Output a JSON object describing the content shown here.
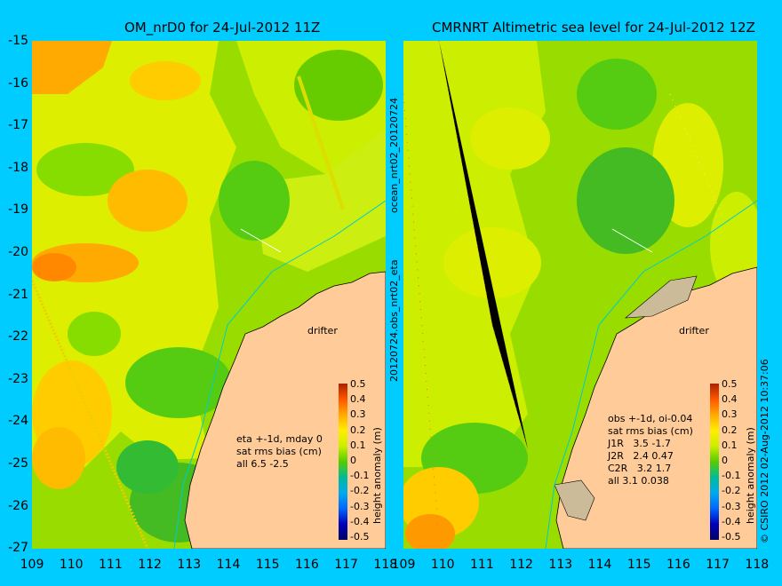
{
  "left_panel": {
    "title": "OM_nrD0 for 24-Jul-2012 11Z",
    "legend_lines": [
      "eta +-1d, mday 0",
      "sat rms bias (cm)",
      "all 6.5 -2.5"
    ],
    "drifter_label": "drifter"
  },
  "right_panel": {
    "title": "CMRNRT Altimetric sea level  for 24-Jul-2012 12Z",
    "legend_lines": [
      "obs +-1d, oi-0.04",
      "sat rms bias (cm)",
      "J1R   3.5 -1.7",
      "J2R   2.4 0.47",
      "C2R   3.2 1.7",
      "all 3.1 0.038"
    ],
    "drifter_label": "drifter"
  },
  "y_ticks": [
    "-15",
    "-16",
    "-17",
    "-18",
    "-19",
    "-20",
    "-21",
    "-22",
    "-23",
    "-24",
    "-25",
    "-26",
    "-27"
  ],
  "x_ticks": [
    "109",
    "110",
    "111",
    "112",
    "113",
    "114",
    "115",
    "116",
    "117",
    "118"
  ],
  "colorbar": {
    "ticks": [
      "0.5",
      "0.4",
      "0.3",
      "0.2",
      "0.1",
      "0",
      "-0.1",
      "-0.2",
      "-0.3",
      "-0.4",
      "-0.5"
    ],
    "label": "height anomaly (m)"
  },
  "side_labels": {
    "file_top": "ocean_nrt02_20120724",
    "file_bottom": "20120724.obs_nrt02_eta",
    "credit": "© CSIRO 2012   02-Aug-2012 10:37:06"
  },
  "colors": {
    "background": "#00ccff",
    "land": "#ffcc99",
    "coastline_track": "#00cccc",
    "vectors": "#ff33ff"
  }
}
